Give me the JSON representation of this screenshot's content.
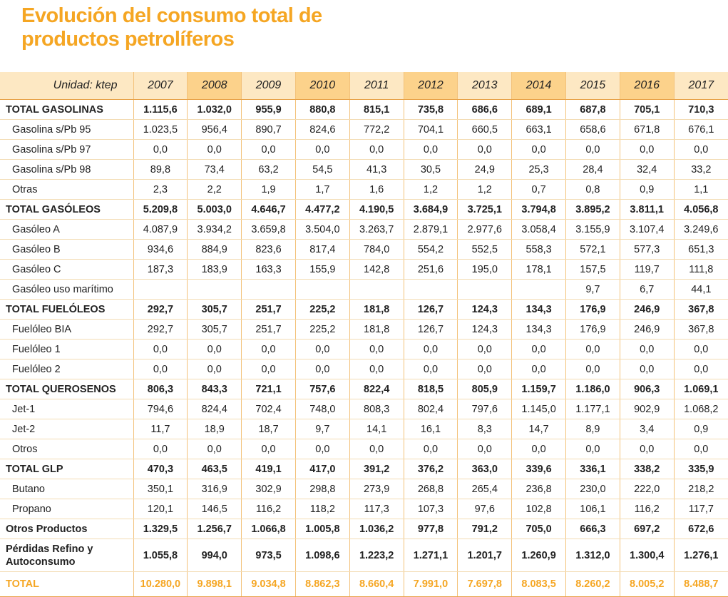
{
  "header": {
    "title": "Evolución del consumo total de productos petrolíferos"
  },
  "table": {
    "columns": [
      "Unidad: ktep",
      "2007",
      "2008",
      "2009",
      "2010",
      "2011",
      "2012",
      "2013",
      "2014",
      "2015",
      "2016",
      "2017"
    ],
    "rows": [
      [
        "TOTAL GASOLINAS",
        "1.115,6",
        "1.032,0",
        "955,9",
        "880,8",
        "815,1",
        "735,8",
        "686,6",
        "689,1",
        "687,8",
        "705,1",
        "710,3"
      ],
      [
        "Gasolina s/Pb 95",
        "1.023,5",
        "956,4",
        "890,7",
        "824,6",
        "772,2",
        "704,1",
        "660,5",
        "663,1",
        "658,6",
        "671,8",
        "676,1"
      ],
      [
        "Gasolina s/Pb 97",
        "0,0",
        "0,0",
        "0,0",
        "0,0",
        "0,0",
        "0,0",
        "0,0",
        "0,0",
        "0,0",
        "0,0",
        "0,0"
      ],
      [
        "Gasolina s/Pb 98",
        "89,8",
        "73,4",
        "63,2",
        "54,5",
        "41,3",
        "30,5",
        "24,9",
        "25,3",
        "28,4",
        "32,4",
        "33,2"
      ],
      [
        "Otras",
        "2,3",
        "2,2",
        "1,9",
        "1,7",
        "1,6",
        "1,2",
        "1,2",
        "0,7",
        "0,8",
        "0,9",
        "1,1"
      ],
      [
        "TOTAL GASÓLEOS",
        "5.209,8",
        "5.003,0",
        "4.646,7",
        "4.477,2",
        "4.190,5",
        "3.684,9",
        "3.725,1",
        "3.794,8",
        "3.895,2",
        "3.811,1",
        "4.056,8"
      ],
      [
        "Gasóleo A",
        "4.087,9",
        "3.934,2",
        "3.659,8",
        "3.504,0",
        "3.263,7",
        "2.879,1",
        "2.977,6",
        "3.058,4",
        "3.155,9",
        "3.107,4",
        "3.249,6"
      ],
      [
        "Gasóleo B",
        "934,6",
        "884,9",
        "823,6",
        "817,4",
        "784,0",
        "554,2",
        "552,5",
        "558,3",
        "572,1",
        "577,3",
        "651,3"
      ],
      [
        "Gasóleo C",
        "187,3",
        "183,9",
        "163,3",
        "155,9",
        "142,8",
        "251,6",
        "195,0",
        "178,1",
        "157,5",
        "119,7",
        "111,8"
      ],
      [
        "Gasóleo uso marítimo",
        null,
        null,
        null,
        null,
        null,
        null,
        null,
        null,
        "9,7",
        "6,7",
        "44,1"
      ],
      [
        "TOTAL FUELÓLEOS",
        "292,7",
        "305,7",
        "251,7",
        "225,2",
        "181,8",
        "126,7",
        "124,3",
        "134,3",
        "176,9",
        "246,9",
        "367,8"
      ],
      [
        "Fuelóleo BIA",
        "292,7",
        "305,7",
        "251,7",
        "225,2",
        "181,8",
        "126,7",
        "124,3",
        "134,3",
        "176,9",
        "246,9",
        "367,8"
      ],
      [
        "Fuelóleo 1",
        "0,0",
        "0,0",
        "0,0",
        "0,0",
        "0,0",
        "0,0",
        "0,0",
        "0,0",
        "0,0",
        "0,0",
        "0,0"
      ],
      [
        "Fuelóleo 2",
        "0,0",
        "0,0",
        "0,0",
        "0,0",
        "0,0",
        "0,0",
        "0,0",
        "0,0",
        "0,0",
        "0,0",
        "0,0"
      ],
      [
        "TOTAL QUEROSENOS",
        "806,3",
        "843,3",
        "721,1",
        "757,6",
        "822,4",
        "818,5",
        "805,9",
        "1.159,7",
        "1.186,0",
        "906,3",
        "1.069,1"
      ],
      [
        "Jet-1",
        "794,6",
        "824,4",
        "702,4",
        "748,0",
        "808,3",
        "802,4",
        "797,6",
        "1.145,0",
        "1.177,1",
        "902,9",
        "1.068,2"
      ],
      [
        "Jet-2",
        "11,7",
        "18,9",
        "18,7",
        "9,7",
        "14,1",
        "16,1",
        "8,3",
        "14,7",
        "8,9",
        "3,4",
        "0,9"
      ],
      [
        "Otros",
        "0,0",
        "0,0",
        "0,0",
        "0,0",
        "0,0",
        "0,0",
        "0,0",
        "0,0",
        "0,0",
        "0,0",
        "0,0"
      ],
      [
        "TOTAL GLP",
        "470,3",
        "463,5",
        "419,1",
        "417,0",
        "391,2",
        "376,2",
        "363,0",
        "339,6",
        "336,1",
        "338,2",
        "335,9"
      ],
      [
        "Butano",
        "350,1",
        "316,9",
        "302,9",
        "298,8",
        "273,9",
        "268,8",
        "265,4",
        "236,8",
        "230,0",
        "222,0",
        "218,2"
      ],
      [
        "Propano",
        "120,1",
        "146,5",
        "116,2",
        "118,2",
        "117,3",
        "107,3",
        "97,6",
        "102,8",
        "106,1",
        "116,2",
        "117,7"
      ],
      [
        "Otros Productos",
        "1.329,5",
        "1.256,7",
        "1.066,8",
        "1.005,8",
        "1.036,2",
        "977,8",
        "791,2",
        "705,0",
        "666,3",
        "697,2",
        "672,6"
      ],
      [
        "Pérdidas Refino y Autoconsumo",
        "1.055,8",
        "994,0",
        "973,5",
        "1.098,6",
        "1.223,2",
        "1.271,1",
        "1.201,7",
        "1.260,9",
        "1.312,0",
        "1.300,4",
        "1.276,1"
      ],
      [
        "TOTAL",
        "10.280,0",
        "9.898,1",
        "9.034,8",
        "8.862,3",
        "8.660,4",
        "7.991,0",
        "7.697,8",
        "8.083,5",
        "8.260,2",
        "8.005,2",
        "8.488,7"
      ]
    ]
  }
}
